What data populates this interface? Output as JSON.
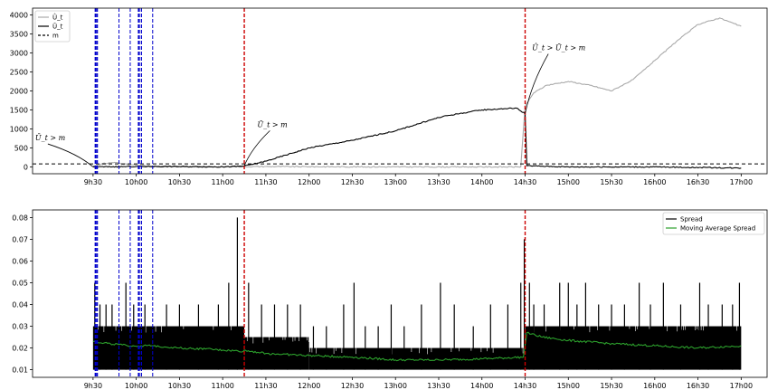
{
  "chart_data": [
    {
      "type": "line",
      "title": "",
      "xlabel": "",
      "ylabel": "",
      "x_tick_labels": [
        "9h30",
        "10h00",
        "10h30",
        "11h00",
        "11h30",
        "12h00",
        "12h30",
        "13h00",
        "13h30",
        "14h00",
        "14h30",
        "15h00",
        "15h30",
        "16h00",
        "16h30",
        "17h00"
      ],
      "x_tick_hours": [
        9.5,
        10,
        10.5,
        11,
        11.5,
        12,
        12.5,
        13,
        13.5,
        14,
        14.5,
        15,
        15.5,
        16,
        16.5,
        17
      ],
      "xlim_hours": [
        8.8,
        17.3
      ],
      "yticks": [
        0,
        500,
        1000,
        1500,
        2000,
        2500,
        3000,
        3500,
        4000
      ],
      "ylim": [
        -180,
        4180
      ],
      "grid": false,
      "legend": {
        "placement": "top-left",
        "entries": [
          {
            "label": "Û_t",
            "color": "#aaaaaa",
            "style": "solid"
          },
          {
            "label": "Ū_t",
            "color": "#000000",
            "style": "solid"
          },
          {
            "label": "m",
            "color": "#000000",
            "style": "dashed"
          }
        ]
      },
      "series": [
        {
          "name": "Û_t",
          "color": "#aaaaaa",
          "points": [
            [
              9.5,
              20
            ],
            [
              9.6,
              80
            ],
            [
              9.75,
              120
            ],
            [
              9.9,
              60
            ],
            [
              10.2,
              20
            ],
            [
              10.5,
              10
            ],
            [
              11,
              5
            ],
            [
              11.25,
              8
            ],
            [
              11.5,
              10
            ],
            [
              12,
              5
            ],
            [
              13,
              0
            ],
            [
              14,
              0
            ],
            [
              14.45,
              0
            ],
            [
              14.5,
              1600
            ],
            [
              14.6,
              1950
            ],
            [
              14.75,
              2150
            ],
            [
              15,
              2250
            ],
            [
              15.25,
              2150
            ],
            [
              15.5,
              2000
            ],
            [
              15.75,
              2300
            ],
            [
              16,
              2800
            ],
            [
              16.25,
              3300
            ],
            [
              16.5,
              3750
            ],
            [
              16.75,
              3920
            ],
            [
              17,
              3700
            ]
          ]
        },
        {
          "name": "Ū_t",
          "color": "#000000",
          "points": [
            [
              9.5,
              0
            ],
            [
              10,
              10
            ],
            [
              10.5,
              10
            ],
            [
              11,
              0
            ],
            [
              11.25,
              20
            ],
            [
              11.5,
              150
            ],
            [
              12,
              500
            ],
            [
              12.5,
              700
            ],
            [
              13,
              950
            ],
            [
              13.5,
              1300
            ],
            [
              13.6,
              1350
            ],
            [
              14,
              1500
            ],
            [
              14.4,
              1550
            ],
            [
              14.5,
              1400
            ],
            [
              14.52,
              30
            ],
            [
              15,
              0
            ],
            [
              16,
              0
            ],
            [
              17,
              -30
            ]
          ]
        },
        {
          "name": "m",
          "color": "#000000",
          "dashed": true,
          "points": [
            [
              8.8,
              80
            ],
            [
              17.3,
              80
            ]
          ]
        }
      ],
      "vlines": [
        {
          "x": 9.53,
          "color": "#0000cc",
          "style": "dashed",
          "width": 2.2
        },
        {
          "x": 9.55,
          "color": "#0000cc",
          "style": "dashed",
          "width": 1.2
        },
        {
          "x": 9.8,
          "color": "#0000cc",
          "style": "dashed",
          "width": 1
        },
        {
          "x": 9.93,
          "color": "#0000cc",
          "style": "dashed",
          "width": 1
        },
        {
          "x": 10.03,
          "color": "#0000cc",
          "style": "dashed",
          "width": 2.2
        },
        {
          "x": 10.06,
          "color": "#0000cc",
          "style": "dashed",
          "width": 1.2
        },
        {
          "x": 10.19,
          "color": "#0000cc",
          "style": "dashed",
          "width": 1
        },
        {
          "x": 11.25,
          "color": "#cc0000",
          "style": "dashed",
          "width": 1.4
        },
        {
          "x": 14.5,
          "color": "#cc0000",
          "style": "dashed",
          "width": 1.4
        }
      ],
      "annotations": [
        {
          "text": "Ū_t > m",
          "text_x": 8.83,
          "text_y": 700,
          "arrow_to": [
            9.5,
            0
          ]
        },
        {
          "text": "Ū_t > m",
          "text_x": 11.4,
          "text_y": 1050,
          "arrow_to": [
            11.25,
            30
          ]
        },
        {
          "text": "Û_t > Ū_t > m",
          "text_x": 14.58,
          "text_y": 3070,
          "arrow_to": [
            14.5,
            1400
          ]
        }
      ]
    },
    {
      "type": "line",
      "title": "",
      "xlabel": "",
      "ylabel": "",
      "x_tick_labels": [
        "9h30",
        "10h00",
        "10h30",
        "11h00",
        "11h30",
        "12h00",
        "12h30",
        "13h00",
        "13h30",
        "14h00",
        "14h30",
        "15h00",
        "15h30",
        "16h00",
        "16h30",
        "17h00"
      ],
      "x_tick_hours": [
        9.5,
        10,
        10.5,
        11,
        11.5,
        12,
        12.5,
        13,
        13.5,
        14,
        14.5,
        15,
        15.5,
        16,
        16.5,
        17
      ],
      "xlim_hours": [
        8.8,
        17.3
      ],
      "yticks": [
        0.01,
        0.02,
        0.03,
        0.04,
        0.05,
        0.06,
        0.07,
        0.08
      ],
      "ytick_labels": [
        "0.01",
        "0.02",
        "0.03",
        "0.04",
        "0.05",
        "0.06",
        "0.07",
        "0.08"
      ],
      "ylim": [
        0.0065,
        0.0835
      ],
      "grid": false,
      "legend": {
        "placement": "top-right",
        "entries": [
          {
            "label": "Spread",
            "color": "#000000",
            "style": "solid"
          },
          {
            "label": "Moving Average Spread",
            "color": "#2ca02c",
            "style": "solid"
          }
        ]
      },
      "series": [
        {
          "name": "Spread",
          "color": "#000000",
          "base": 0.01,
          "dense_band": [
            {
              "from": 9.5,
              "to": 11.25,
              "top": 0.03
            },
            {
              "from": 11.25,
              "to": 12.0,
              "top": 0.025
            },
            {
              "from": 12.0,
              "to": 14.5,
              "top": 0.02
            },
            {
              "from": 14.5,
              "to": 17.0,
              "top": 0.03
            }
          ],
          "spikes": [
            [
              9.52,
              0.05
            ],
            [
              9.58,
              0.04
            ],
            [
              9.65,
              0.04
            ],
            [
              9.72,
              0.04
            ],
            [
              9.88,
              0.05
            ],
            [
              9.97,
              0.04
            ],
            [
              10.1,
              0.04
            ],
            [
              10.35,
              0.04
            ],
            [
              10.5,
              0.04
            ],
            [
              10.72,
              0.04
            ],
            [
              10.95,
              0.04
            ],
            [
              11.07,
              0.05
            ],
            [
              11.17,
              0.08
            ],
            [
              11.3,
              0.05
            ],
            [
              11.45,
              0.04
            ],
            [
              11.6,
              0.04
            ],
            [
              11.75,
              0.04
            ],
            [
              11.9,
              0.04
            ],
            [
              12.05,
              0.03
            ],
            [
              12.2,
              0.03
            ],
            [
              12.4,
              0.04
            ],
            [
              12.52,
              0.05
            ],
            [
              12.65,
              0.03
            ],
            [
              12.8,
              0.03
            ],
            [
              12.95,
              0.04
            ],
            [
              13.1,
              0.03
            ],
            [
              13.3,
              0.04
            ],
            [
              13.52,
              0.05
            ],
            [
              13.68,
              0.04
            ],
            [
              13.9,
              0.03
            ],
            [
              14.1,
              0.04
            ],
            [
              14.3,
              0.04
            ],
            [
              14.45,
              0.05
            ],
            [
              14.49,
              0.07
            ],
            [
              14.55,
              0.05
            ],
            [
              14.6,
              0.04
            ],
            [
              14.72,
              0.04
            ],
            [
              14.9,
              0.05
            ],
            [
              15.0,
              0.05
            ],
            [
              15.1,
              0.04
            ],
            [
              15.2,
              0.05
            ],
            [
              15.35,
              0.04
            ],
            [
              15.5,
              0.04
            ],
            [
              15.65,
              0.04
            ],
            [
              15.82,
              0.05
            ],
            [
              15.95,
              0.04
            ],
            [
              16.1,
              0.05
            ],
            [
              16.3,
              0.04
            ],
            [
              16.52,
              0.05
            ],
            [
              16.62,
              0.04
            ],
            [
              16.78,
              0.04
            ],
            [
              16.9,
              0.04
            ],
            [
              16.98,
              0.05
            ]
          ]
        },
        {
          "name": "Moving Average Spread",
          "color": "#2ca02c",
          "points": [
            [
              9.5,
              0.023
            ],
            [
              9.7,
              0.022
            ],
            [
              9.9,
              0.021
            ],
            [
              10.2,
              0.021
            ],
            [
              10.5,
              0.02
            ],
            [
              10.8,
              0.0195
            ],
            [
              11.0,
              0.019
            ],
            [
              11.24,
              0.0185
            ],
            [
              11.25,
              0.019
            ],
            [
              11.5,
              0.0175
            ],
            [
              12.0,
              0.0165
            ],
            [
              12.5,
              0.0158
            ],
            [
              13.0,
              0.0145
            ],
            [
              13.5,
              0.0145
            ],
            [
              14.0,
              0.015
            ],
            [
              14.48,
              0.0158
            ],
            [
              14.52,
              0.027
            ],
            [
              14.7,
              0.025
            ],
            [
              15.0,
              0.0235
            ],
            [
              15.5,
              0.022
            ],
            [
              16.0,
              0.021
            ],
            [
              16.5,
              0.02
            ],
            [
              17.0,
              0.021
            ]
          ]
        }
      ],
      "vlines": [
        {
          "x": 9.53,
          "color": "#0000cc",
          "style": "dashed",
          "width": 2.2
        },
        {
          "x": 9.55,
          "color": "#0000cc",
          "style": "dashed",
          "width": 1.2
        },
        {
          "x": 9.8,
          "color": "#0000cc",
          "style": "dashed",
          "width": 1
        },
        {
          "x": 9.93,
          "color": "#0000cc",
          "style": "dashed",
          "width": 1
        },
        {
          "x": 10.03,
          "color": "#0000cc",
          "style": "dashed",
          "width": 2.2
        },
        {
          "x": 10.06,
          "color": "#0000cc",
          "style": "dashed",
          "width": 1.2
        },
        {
          "x": 10.19,
          "color": "#0000cc",
          "style": "dashed",
          "width": 1
        },
        {
          "x": 11.25,
          "color": "#cc0000",
          "style": "dashed",
          "width": 1.4
        },
        {
          "x": 14.5,
          "color": "#cc0000",
          "style": "dashed",
          "width": 1.4
        }
      ]
    }
  ]
}
